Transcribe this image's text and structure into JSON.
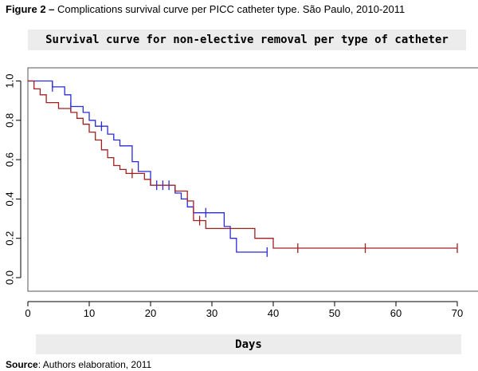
{
  "figure": {
    "label": "Figure 2 –",
    "caption": "Complications survival curve per PICC catheter type. São Paulo, 2010-2011"
  },
  "source": {
    "label": "Source",
    "text": ": Authors elaboration, 2011"
  },
  "chart_data": {
    "type": "line",
    "step": true,
    "title": "Survival curve for non-elective removal per type of catheter",
    "xlabel": "Days",
    "ylabel": "",
    "xlim": [
      0,
      72
    ],
    "ylim": [
      0,
      1.0
    ],
    "x_ticks": [
      0,
      10,
      20,
      30,
      40,
      50,
      60,
      70
    ],
    "y_ticks": [
      "0.0",
      "0.2",
      "0.4",
      "0.6",
      "0.8",
      "1.0"
    ],
    "grid": false,
    "legend": "none",
    "series": [
      {
        "color": "#2b2bd8",
        "points": [
          [
            0,
            1.0
          ],
          [
            4,
            1.0
          ],
          [
            4,
            0.97
          ],
          [
            6,
            0.97
          ],
          [
            6,
            0.93
          ],
          [
            7,
            0.93
          ],
          [
            7,
            0.87
          ],
          [
            9,
            0.87
          ],
          [
            9,
            0.84
          ],
          [
            10,
            0.84
          ],
          [
            10,
            0.8
          ],
          [
            11,
            0.8
          ],
          [
            11,
            0.77
          ],
          [
            13,
            0.77
          ],
          [
            13,
            0.73
          ],
          [
            14,
            0.73
          ],
          [
            14,
            0.7
          ],
          [
            15,
            0.7
          ],
          [
            15,
            0.67
          ],
          [
            17,
            0.67
          ],
          [
            17,
            0.59
          ],
          [
            18,
            0.59
          ],
          [
            18,
            0.54
          ],
          [
            20,
            0.54
          ],
          [
            20,
            0.47
          ],
          [
            24,
            0.47
          ],
          [
            24,
            0.43
          ],
          [
            25,
            0.43
          ],
          [
            25,
            0.4
          ],
          [
            26,
            0.4
          ],
          [
            26,
            0.36
          ],
          [
            27,
            0.36
          ],
          [
            27,
            0.33
          ],
          [
            32,
            0.33
          ],
          [
            32,
            0.26
          ],
          [
            33,
            0.26
          ],
          [
            33,
            0.2
          ],
          [
            34,
            0.2
          ],
          [
            34,
            0.13
          ],
          [
            39,
            0.13
          ]
        ],
        "censor": [
          [
            4,
            0.97
          ],
          [
            7,
            0.87
          ],
          [
            12,
            0.77
          ],
          [
            21,
            0.47
          ],
          [
            22,
            0.47
          ],
          [
            23,
            0.47
          ],
          [
            29,
            0.33
          ],
          [
            39,
            0.13
          ]
        ]
      },
      {
        "color": "#a02020",
        "points": [
          [
            0,
            1.0
          ],
          [
            1,
            1.0
          ],
          [
            1,
            0.96
          ],
          [
            2,
            0.96
          ],
          [
            2,
            0.93
          ],
          [
            3,
            0.93
          ],
          [
            3,
            0.89
          ],
          [
            5,
            0.89
          ],
          [
            5,
            0.86
          ],
          [
            7,
            0.86
          ],
          [
            7,
            0.84
          ],
          [
            8,
            0.84
          ],
          [
            8,
            0.81
          ],
          [
            9,
            0.81
          ],
          [
            9,
            0.78
          ],
          [
            10,
            0.78
          ],
          [
            10,
            0.74
          ],
          [
            11,
            0.74
          ],
          [
            11,
            0.7
          ],
          [
            12,
            0.7
          ],
          [
            12,
            0.65
          ],
          [
            13,
            0.65
          ],
          [
            13,
            0.61
          ],
          [
            14,
            0.61
          ],
          [
            14,
            0.57
          ],
          [
            15,
            0.57
          ],
          [
            15,
            0.55
          ],
          [
            16,
            0.55
          ],
          [
            16,
            0.53
          ],
          [
            19,
            0.53
          ],
          [
            19,
            0.5
          ],
          [
            20,
            0.5
          ],
          [
            20,
            0.47
          ],
          [
            24,
            0.47
          ],
          [
            24,
            0.44
          ],
          [
            26,
            0.44
          ],
          [
            26,
            0.39
          ],
          [
            27,
            0.39
          ],
          [
            27,
            0.29
          ],
          [
            29,
            0.29
          ],
          [
            29,
            0.25
          ],
          [
            37,
            0.25
          ],
          [
            37,
            0.2
          ],
          [
            40,
            0.2
          ],
          [
            40,
            0.15
          ],
          [
            70,
            0.15
          ]
        ],
        "censor": [
          [
            17,
            0.53
          ],
          [
            28,
            0.29
          ],
          [
            44,
            0.15
          ],
          [
            55,
            0.15
          ],
          [
            70,
            0.15
          ]
        ]
      }
    ]
  }
}
